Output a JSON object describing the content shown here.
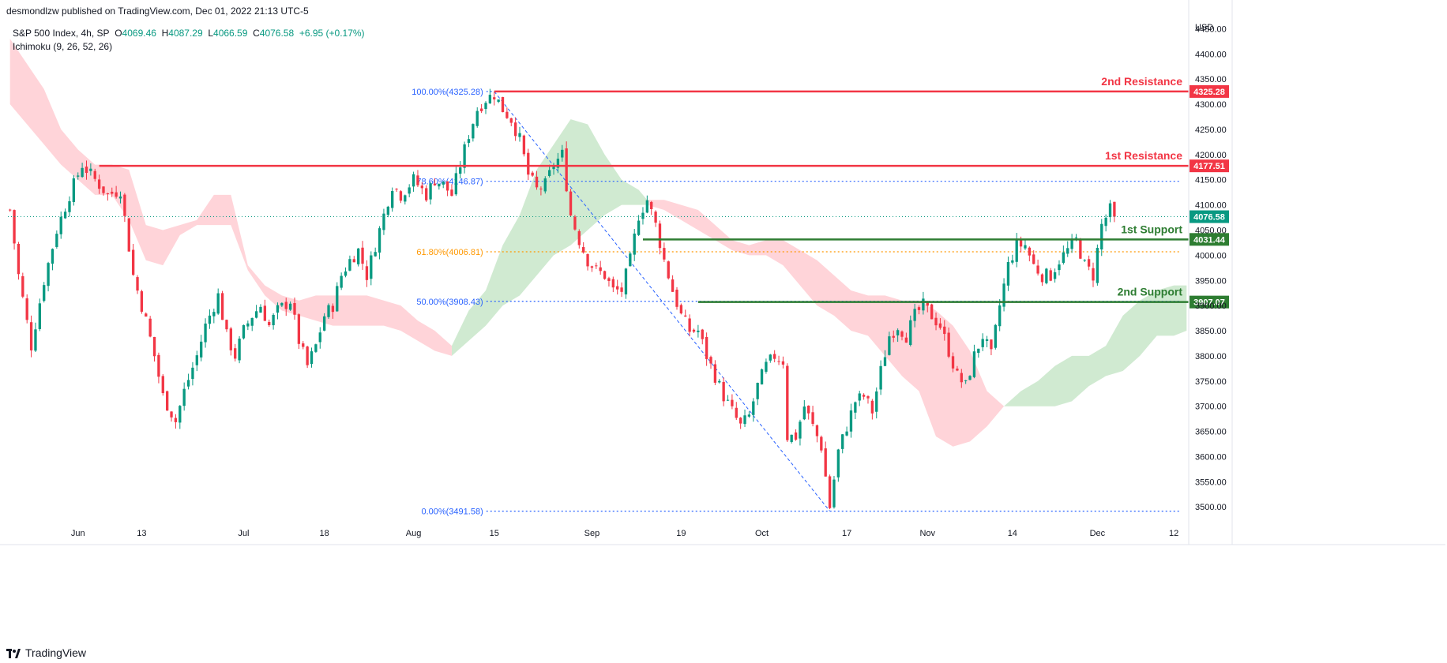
{
  "publisher_line": "desmondlzw published on TradingView.com, Dec 01, 2022 21:13 UTC-5",
  "brand": "TradingView",
  "legend": {
    "symbol": "S&P 500 Index, 4h, SP",
    "O_label": "O",
    "O": "4069.46",
    "H_label": "H",
    "H": "4087.29",
    "L_label": "L",
    "L": "4066.59",
    "C_label": "C",
    "C": "4076.58",
    "change": "+6.95 (+0.17%)",
    "indicator": "Ichimoku (9, 26, 52, 26)"
  },
  "colors": {
    "up": "#089981",
    "down": "#f23645",
    "resistance": "#f23645",
    "support": "#2e7d32",
    "fib": "#2962ff",
    "fib_618": "#ff9800",
    "cloud_bear": "#ffcdd2",
    "cloud_bull": "#c8e6c9"
  },
  "chart_data": {
    "type": "candlestick",
    "currency": "USD",
    "ylim": [
      3480,
      4460
    ],
    "y_ticks": [
      "3500.00",
      "3550.00",
      "3600.00",
      "3650.00",
      "3700.00",
      "3750.00",
      "3800.00",
      "3850.00",
      "3900.00",
      "3950.00",
      "4000.00",
      "4050.00",
      "4100.00",
      "4150.00",
      "4200.00",
      "4250.00",
      "4300.00",
      "4350.00",
      "4400.00",
      "4450.00"
    ],
    "x_ticks": [
      "Jun",
      "13",
      "Jul",
      "18",
      "Aug",
      "15",
      "Sep",
      "19",
      "Oct",
      "17",
      "Nov",
      "14",
      "Dec",
      "12"
    ],
    "x_tick_index": [
      16,
      31,
      55,
      74,
      95,
      114,
      137,
      158,
      177,
      197,
      216,
      236,
      256,
      274
    ],
    "bar_count": 278,
    "price_path": [
      [
        0,
        4090
      ],
      [
        2,
        3960
      ],
      [
        5,
        3820
      ],
      [
        8,
        3950
      ],
      [
        11,
        4050
      ],
      [
        14,
        4120
      ],
      [
        17,
        4180
      ],
      [
        20,
        4150
      ],
      [
        23,
        4120
      ],
      [
        26,
        4130
      ],
      [
        29,
        3960
      ],
      [
        32,
        3870
      ],
      [
        34,
        3800
      ],
      [
        36,
        3720
      ],
      [
        39,
        3670
      ],
      [
        41,
        3730
      ],
      [
        44,
        3800
      ],
      [
        46,
        3860
      ],
      [
        49,
        3920
      ],
      [
        51,
        3840
      ],
      [
        53,
        3800
      ],
      [
        55,
        3850
      ],
      [
        57,
        3880
      ],
      [
        59,
        3900
      ],
      [
        61,
        3860
      ],
      [
        63,
        3890
      ],
      [
        66,
        3910
      ],
      [
        68,
        3830
      ],
      [
        70,
        3780
      ],
      [
        72,
        3820
      ],
      [
        74,
        3880
      ],
      [
        76,
        3900
      ],
      [
        78,
        3960
      ],
      [
        80,
        3990
      ],
      [
        82,
        4010
      ],
      [
        84,
        3960
      ],
      [
        86,
        4020
      ],
      [
        88,
        4080
      ],
      [
        90,
        4140
      ],
      [
        92,
        4120
      ],
      [
        95,
        4150
      ],
      [
        98,
        4120
      ],
      [
        100,
        4150
      ],
      [
        102,
        4140
      ],
      [
        104,
        4120
      ],
      [
        106,
        4180
      ],
      [
        108,
        4240
      ],
      [
        110,
        4290
      ],
      [
        112,
        4310
      ],
      [
        114,
        4320
      ],
      [
        116,
        4290
      ],
      [
        118,
        4270
      ],
      [
        120,
        4230
      ],
      [
        122,
        4160
      ],
      [
        124,
        4130
      ],
      [
        126,
        4140
      ],
      [
        128,
        4180
      ],
      [
        130,
        4200
      ],
      [
        132,
        4080
      ],
      [
        134,
        4030
      ],
      [
        136,
        3990
      ],
      [
        138,
        3970
      ],
      [
        140,
        3960
      ],
      [
        142,
        3930
      ],
      [
        144,
        3930
      ],
      [
        146,
        3990
      ],
      [
        148,
        4080
      ],
      [
        150,
        4110
      ],
      [
        152,
        4060
      ],
      [
        154,
        3990
      ],
      [
        156,
        3930
      ],
      [
        158,
        3880
      ],
      [
        160,
        3850
      ],
      [
        162,
        3850
      ],
      [
        164,
        3800
      ],
      [
        166,
        3760
      ],
      [
        168,
        3720
      ],
      [
        170,
        3690
      ],
      [
        172,
        3660
      ],
      [
        174,
        3680
      ],
      [
        176,
        3740
      ],
      [
        178,
        3780
      ],
      [
        180,
        3800
      ],
      [
        182,
        3790
      ],
      [
        183,
        3640
      ],
      [
        185,
        3640
      ],
      [
        187,
        3700
      ],
      [
        189,
        3660
      ],
      [
        191,
        3620
      ],
      [
        193,
        3500
      ],
      [
        195,
        3610
      ],
      [
        197,
        3660
      ],
      [
        199,
        3710
      ],
      [
        201,
        3720
      ],
      [
        203,
        3690
      ],
      [
        205,
        3770
      ],
      [
        207,
        3840
      ],
      [
        209,
        3860
      ],
      [
        211,
        3840
      ],
      [
        213,
        3880
      ],
      [
        215,
        3900
      ],
      [
        217,
        3880
      ],
      [
        219,
        3860
      ],
      [
        221,
        3810
      ],
      [
        223,
        3760
      ],
      [
        225,
        3740
      ],
      [
        227,
        3800
      ],
      [
        229,
        3840
      ],
      [
        231,
        3800
      ],
      [
        233,
        3900
      ],
      [
        235,
        3980
      ],
      [
        237,
        4020
      ],
      [
        239,
        4020
      ],
      [
        241,
        3980
      ],
      [
        243,
        3960
      ],
      [
        245,
        3960
      ],
      [
        247,
        3990
      ],
      [
        249,
        4010
      ],
      [
        251,
        4030
      ],
      [
        253,
        3980
      ],
      [
        255,
        3960
      ],
      [
        257,
        4060
      ],
      [
        259,
        4090
      ],
      [
        260,
        4076.58
      ]
    ],
    "last_price": 4076.58,
    "ichimoku_cloud": [
      {
        "kind": "bearish",
        "x": [
          0,
          4,
          8,
          12,
          16,
          20,
          24,
          28,
          32,
          36,
          40,
          44,
          48,
          52,
          56,
          60,
          64,
          68,
          72,
          76,
          80,
          84,
          88,
          92,
          96,
          100,
          104
        ],
        "upper": [
          4430,
          4380,
          4330,
          4250,
          4210,
          4180,
          4180,
          4170,
          4060,
          4050,
          4060,
          4070,
          4120,
          4120,
          3980,
          3940,
          3920,
          3910,
          3920,
          3920,
          3920,
          3920,
          3910,
          3900,
          3870,
          3850,
          3820
        ],
        "lower": [
          4300,
          4260,
          4220,
          4180,
          4150,
          4120,
          4120,
          4070,
          3990,
          3980,
          4040,
          4060,
          4060,
          4060,
          3970,
          3920,
          3890,
          3880,
          3870,
          3860,
          3860,
          3860,
          3860,
          3850,
          3830,
          3810,
          3800
        ]
      },
      {
        "kind": "bullish",
        "x": [
          104,
          108,
          112,
          116,
          120,
          124,
          128,
          132,
          136,
          140,
          144,
          148,
          150
        ],
        "upper": [
          3820,
          3890,
          3930,
          4020,
          4080,
          4170,
          4220,
          4270,
          4260,
          4200,
          4150,
          4130,
          4110
        ],
        "lower": [
          3800,
          3830,
          3860,
          3900,
          3920,
          3960,
          4000,
          4020,
          4050,
          4080,
          4100,
          4100,
          4100
        ]
      },
      {
        "kind": "bearish",
        "x": [
          150,
          154,
          158,
          162,
          166,
          170,
          174,
          178,
          182,
          186,
          190,
          194,
          198,
          202,
          206,
          210,
          214,
          218,
          222,
          226,
          230,
          234
        ],
        "upper": [
          4110,
          4110,
          4100,
          4090,
          4060,
          4030,
          4020,
          4030,
          4030,
          4010,
          3990,
          3960,
          3930,
          3920,
          3920,
          3910,
          3910,
          3890,
          3860,
          3810,
          3730,
          3700
        ],
        "lower": [
          4100,
          4090,
          4070,
          4050,
          4030,
          4010,
          4000,
          4000,
          3980,
          3940,
          3900,
          3880,
          3850,
          3840,
          3800,
          3760,
          3730,
          3640,
          3620,
          3630,
          3660,
          3700
        ]
      },
      {
        "kind": "bullish",
        "x": [
          234,
          238,
          242,
          246,
          250,
          254,
          258,
          262,
          266,
          270,
          274,
          277
        ],
        "upper": [
          3700,
          3730,
          3750,
          3780,
          3800,
          3800,
          3820,
          3880,
          3910,
          3930,
          3940,
          3940
        ],
        "lower": [
          3700,
          3700,
          3700,
          3700,
          3710,
          3740,
          3760,
          3770,
          3800,
          3840,
          3840,
          3850
        ]
      }
    ],
    "horizontal_levels": [
      {
        "name": "2nd Resistance",
        "value": 4325.28,
        "label": "4325.28",
        "kind": "resistance",
        "from_bar": 114
      },
      {
        "name": "1st Resistance",
        "value": 4177.51,
        "label": "4177.51",
        "kind": "resistance",
        "from_bar": 21
      },
      {
        "name": "1st Support",
        "value": 4031.44,
        "label": "4031.44",
        "kind": "support",
        "from_bar": 149
      },
      {
        "name": "2nd Support",
        "value": 3907.07,
        "label": "3907.07",
        "kind": "support",
        "from_bar": 162
      }
    ],
    "fibonacci": [
      {
        "label": "100.00%(4325.28)",
        "value": 4325.28
      },
      {
        "label": "78.60%(4146.87)",
        "value": 4146.87
      },
      {
        "label": "61.80%(4006.81)",
        "value": 4006.81
      },
      {
        "label": "50.00%(3908.43)",
        "value": 3908.43
      },
      {
        "label": "0.00%(3491.58)",
        "value": 3491.58
      }
    ],
    "fib_from_bar": 114,
    "fib_to_bar": 193,
    "price_label": "4076.58"
  }
}
